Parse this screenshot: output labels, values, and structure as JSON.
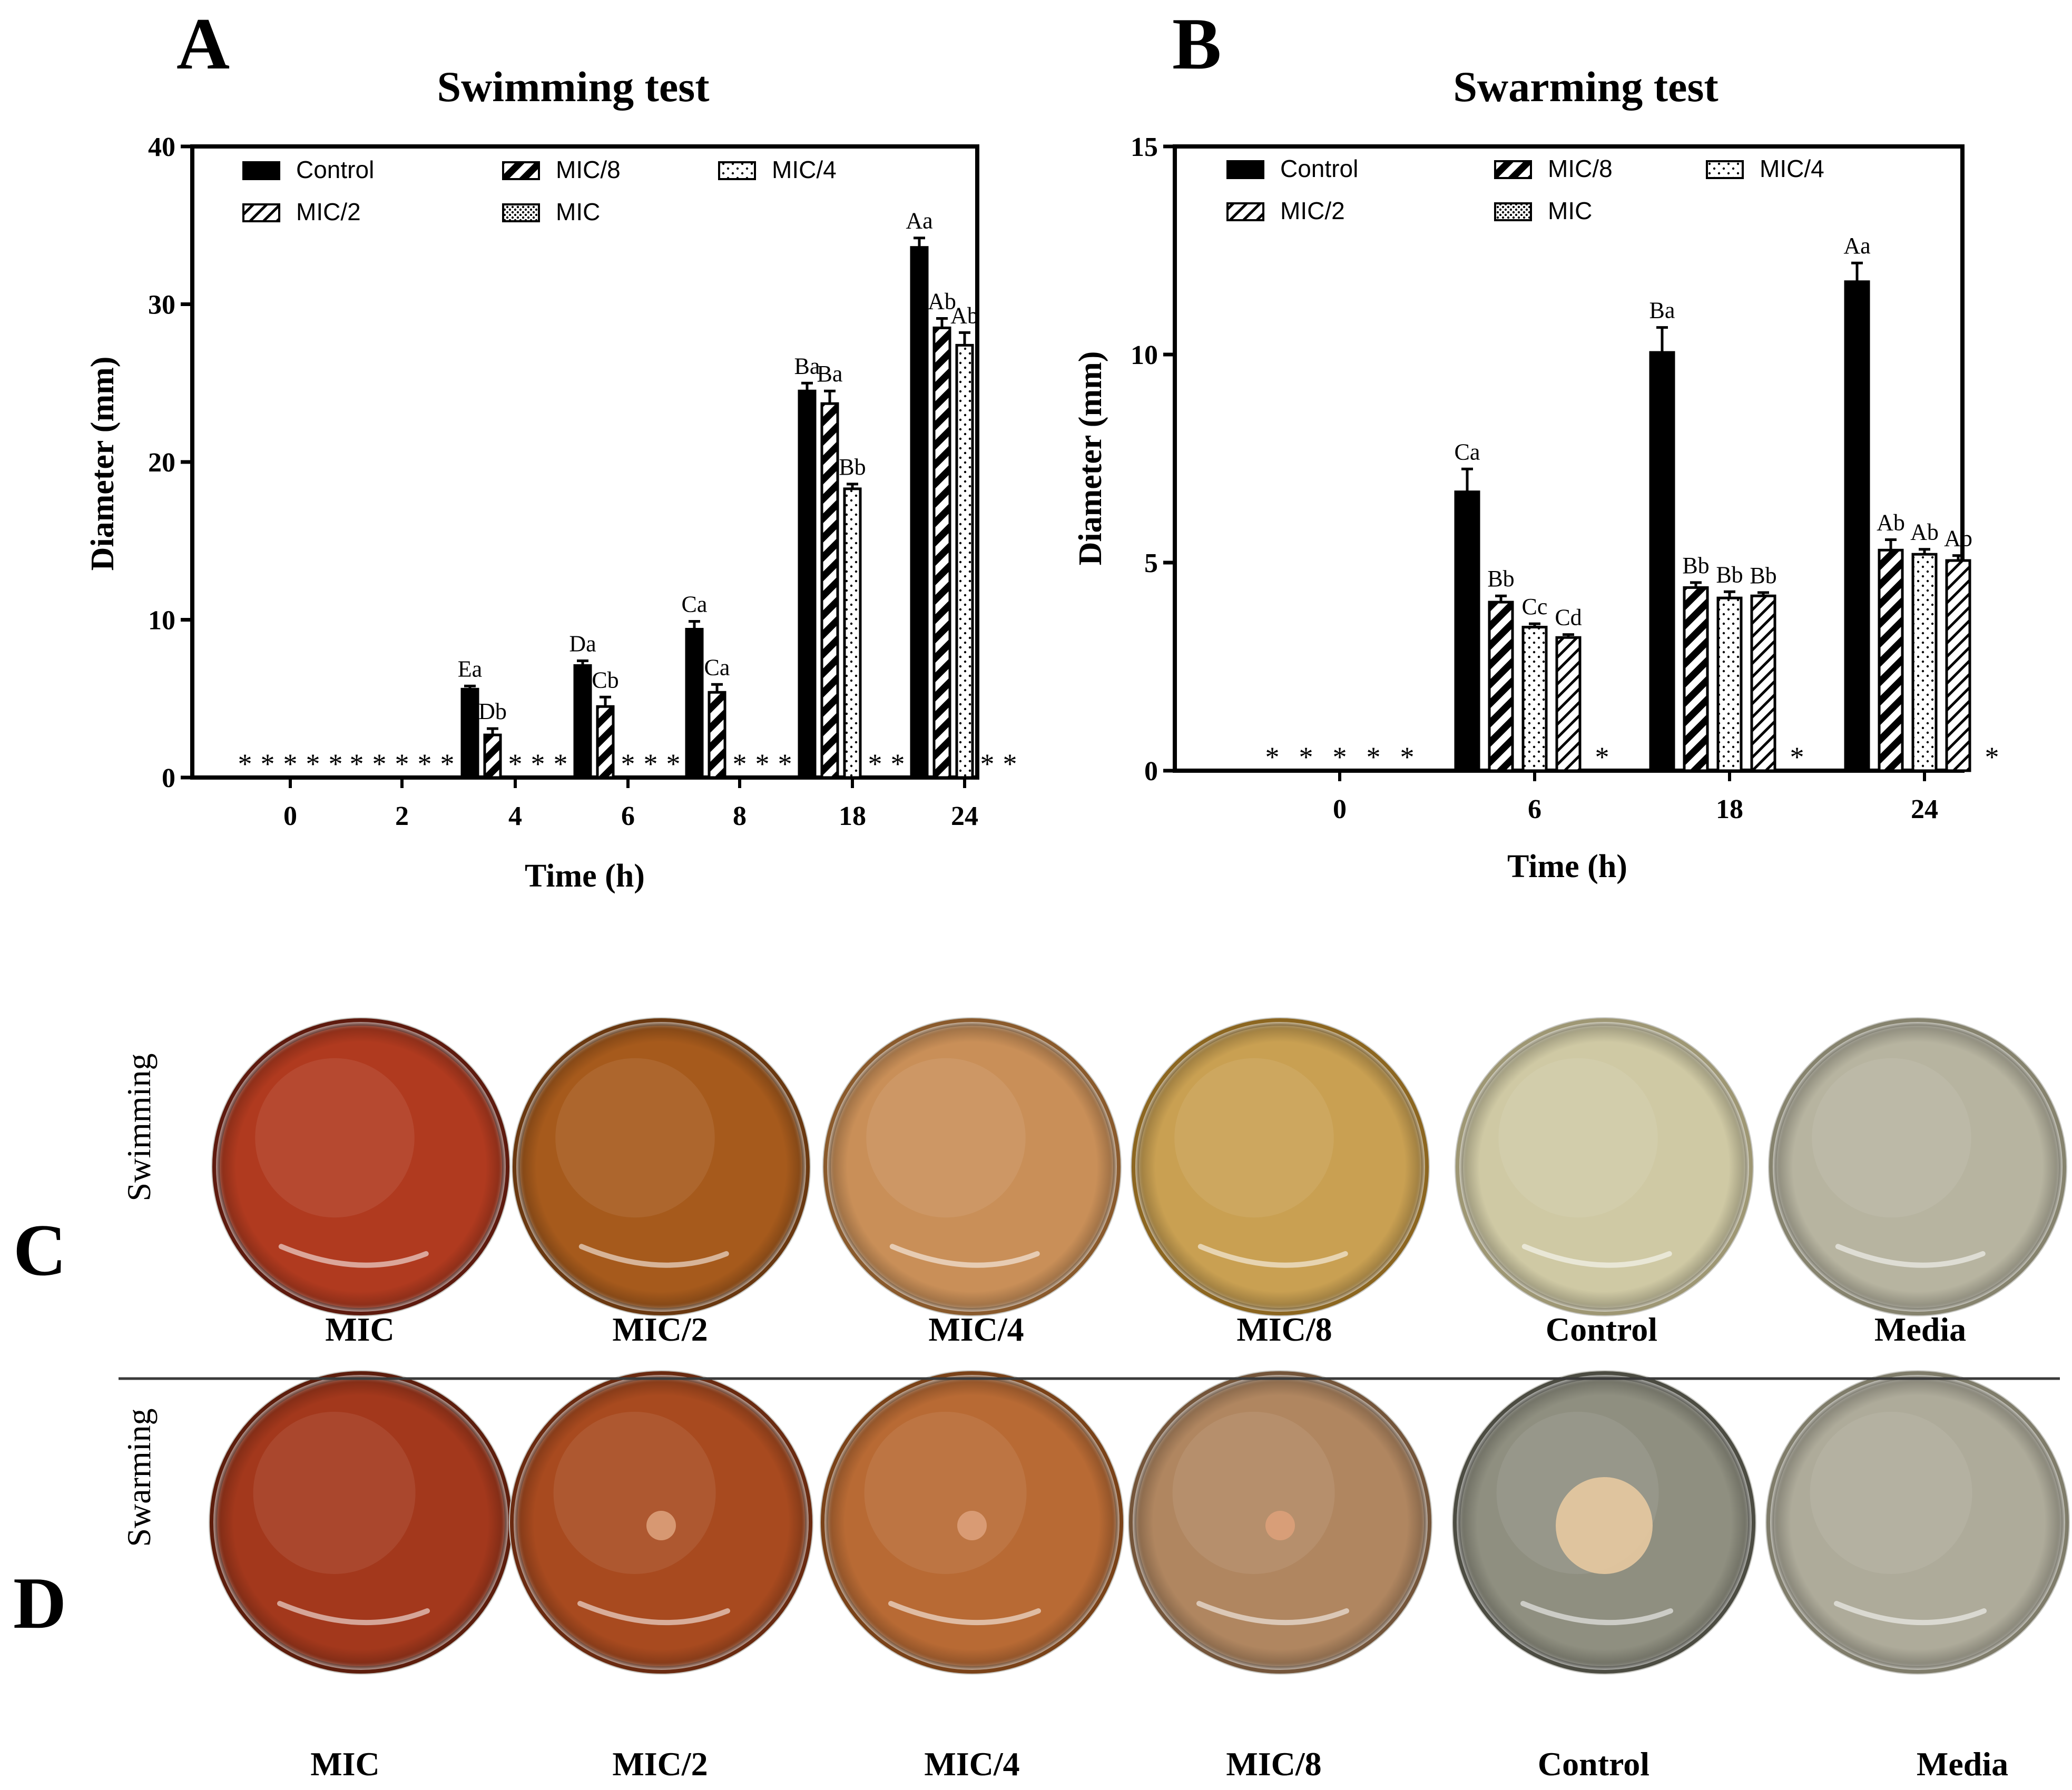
{
  "panels": {
    "a": "A",
    "b": "B",
    "c": "C",
    "d": "D"
  },
  "colors": {
    "ink": "#000000",
    "white": "#ffffff",
    "divider": "#3a3a3a"
  },
  "legend_symbols": {
    "Control": "solid",
    "MIC/8": "hatch-bold",
    "MIC/4": "dots-sparse",
    "MIC/2": "hatch-thin",
    "MIC": "dots-dense"
  },
  "chart_data": [
    {
      "type": "bar",
      "title": "Swimming test",
      "xlabel": "Time (h)",
      "ylabel": "Diameter (mm)",
      "ylim": [
        0,
        40
      ],
      "yticks": [
        "0",
        "10",
        "20",
        "30",
        "40"
      ],
      "grid": false,
      "legend_position": "top-left",
      "legend": [
        "Control",
        "MIC/8",
        "MIC/4",
        "MIC/2",
        "MIC"
      ],
      "categories": [
        "0",
        "2",
        "4",
        "6",
        "8",
        "18",
        "24"
      ],
      "series": [
        {
          "name": "Control",
          "values": [
            0,
            0,
            5.6,
            7.1,
            9.4,
            24.5,
            33.6
          ],
          "errors": [
            0,
            0,
            0.2,
            0.3,
            0.5,
            0.5,
            0.6
          ],
          "labels": [
            "*",
            "*",
            "Ea",
            "Da",
            "Ca",
            "Ba",
            "Aa"
          ]
        },
        {
          "name": "MIC/8",
          "values": [
            0,
            0,
            2.7,
            4.5,
            5.4,
            23.7,
            28.5
          ],
          "errors": [
            0,
            0,
            0.4,
            0.6,
            0.5,
            0.8,
            0.6
          ],
          "labels": [
            "*",
            "*",
            "Db",
            "Cb",
            "Ca",
            "Ba",
            "Ab"
          ]
        },
        {
          "name": "MIC/4",
          "values": [
            0,
            0,
            0,
            0,
            0,
            18.3,
            27.4
          ],
          "errors": [
            0,
            0,
            0,
            0,
            0,
            0.3,
            0.8
          ],
          "labels": [
            "*",
            "*",
            "*",
            "*",
            "*",
            "Bb",
            "Ab"
          ]
        },
        {
          "name": "MIC/2",
          "values": [
            0,
            0,
            0,
            0,
            0,
            0,
            0
          ],
          "errors": [
            0,
            0,
            0,
            0,
            0,
            0,
            0
          ],
          "labels": [
            "*",
            "*",
            "*",
            "*",
            "*",
            "*",
            "*"
          ]
        },
        {
          "name": "MIC",
          "values": [
            0,
            0,
            0,
            0,
            0,
            0,
            0
          ],
          "errors": [
            0,
            0,
            0,
            0,
            0,
            0,
            0
          ],
          "labels": [
            "*",
            "*",
            "*",
            "*",
            "*",
            "*",
            "*"
          ]
        }
      ]
    },
    {
      "type": "bar",
      "title": "Swarming test",
      "xlabel": "Time (h)",
      "ylabel": "Diameter (mm)",
      "ylim": [
        0,
        15
      ],
      "yticks": [
        "0",
        "5",
        "10",
        "15"
      ],
      "grid": false,
      "legend_position": "top-left",
      "legend": [
        "Control",
        "MIC/8",
        "MIC/4",
        "MIC/2",
        "MIC"
      ],
      "categories": [
        "0",
        "6",
        "18",
        "24"
      ],
      "series": [
        {
          "name": "Control",
          "values": [
            0,
            6.7,
            10.05,
            11.75
          ],
          "errors": [
            0,
            0.55,
            0.6,
            0.45
          ],
          "labels": [
            "*",
            "Ca",
            "Ba",
            "Aa"
          ]
        },
        {
          "name": "MIC/8",
          "values": [
            0,
            4.05,
            4.4,
            5.3
          ],
          "errors": [
            0,
            0.15,
            0.12,
            0.25
          ],
          "labels": [
            "*",
            "Bb",
            "Bb",
            "Ab"
          ]
        },
        {
          "name": "MIC/4",
          "values": [
            0,
            3.45,
            4.15,
            5.2
          ],
          "errors": [
            0,
            0.08,
            0.15,
            0.12
          ],
          "labels": [
            "*",
            "Cc",
            "Bb",
            "Ab"
          ]
        },
        {
          "name": "MIC/2",
          "values": [
            0,
            3.2,
            4.2,
            5.05
          ],
          "errors": [
            0,
            0.07,
            0.08,
            0.12
          ],
          "labels": [
            "*",
            "Cd",
            "Bb",
            "Ab"
          ]
        },
        {
          "name": "MIC",
          "values": [
            0,
            0,
            0,
            0
          ],
          "errors": [
            0,
            0,
            0,
            0
          ],
          "labels": [
            "*",
            "*",
            "*",
            "*"
          ]
        }
      ]
    }
  ],
  "photo_rows": [
    {
      "label": "Swimming",
      "panel": "C",
      "plates": [
        {
          "caption": "MIC",
          "fill": "#b03a1f",
          "edge": "#5e1a0e",
          "spot": false
        },
        {
          "caption": "MIC/2",
          "fill": "#a65a1c",
          "edge": "#6a3810",
          "spot": false
        },
        {
          "caption": "MIC/4",
          "fill": "#c98f58",
          "edge": "#8a5a2c",
          "spot": false
        },
        {
          "caption": "MIC/8",
          "fill": "#c9a052",
          "edge": "#8c6620",
          "spot": false
        },
        {
          "caption": "Control",
          "fill": "#cfc9a4",
          "edge": "#9e9774",
          "spot": false
        },
        {
          "caption": "Media",
          "fill": "#b7b4a0",
          "edge": "#86836e",
          "spot": false
        }
      ]
    },
    {
      "label": "Swarming",
      "panel": "D",
      "plates": [
        {
          "caption": "MIC",
          "fill": "#a3381c",
          "edge": "#5d1d0c",
          "spot": false
        },
        {
          "caption": "MIC/2",
          "fill": "#a84a1f",
          "edge": "#6a2a10",
          "spot": true
        },
        {
          "caption": "MIC/4",
          "fill": "#b86a34",
          "edge": "#7a4218",
          "spot": true
        },
        {
          "caption": "MIC/8",
          "fill": "#b08660",
          "edge": "#74553a",
          "spot": true
        },
        {
          "caption": "Control",
          "fill": "#8f8f80",
          "edge": "#4c4c42",
          "spot": true
        },
        {
          "caption": "Media",
          "fill": "#aeab9a",
          "edge": "#7f7c6a",
          "spot": false
        }
      ]
    }
  ]
}
